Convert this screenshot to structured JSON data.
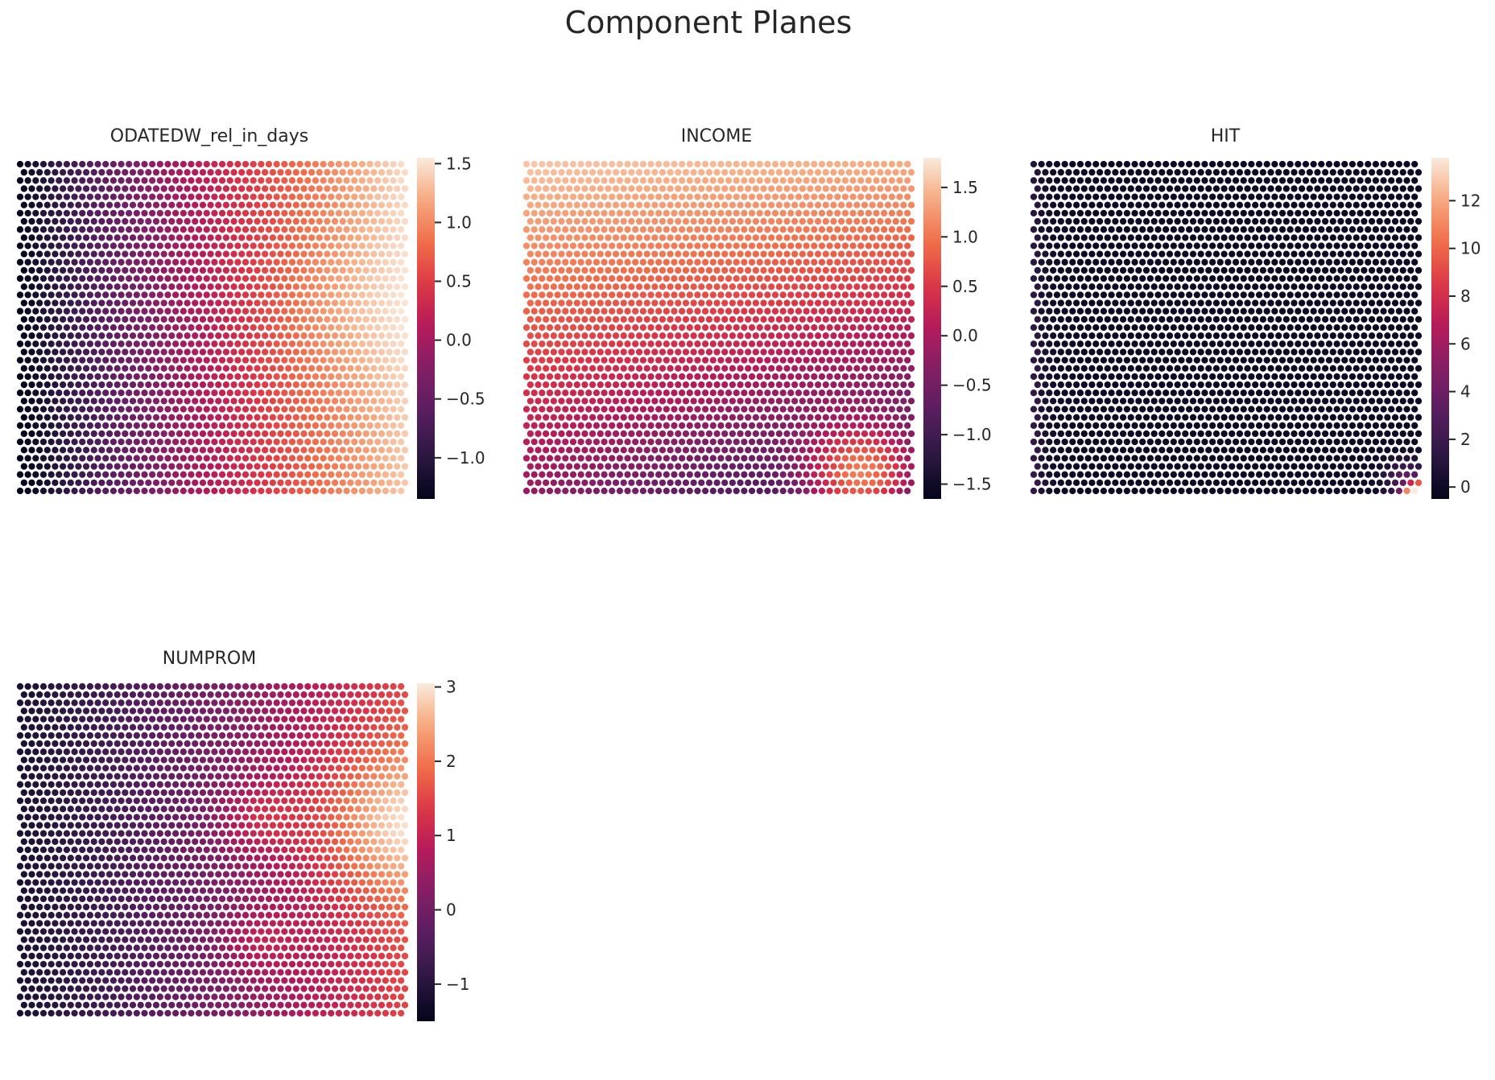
{
  "figure": {
    "title": "Component Planes"
  },
  "chart_data": [
    {
      "type": "heatmap",
      "title": "ODATEDW_rel_in_days",
      "grid": "hexagonal",
      "colormap": "rocket",
      "colorbar": {
        "min": -1.35,
        "max": 1.55,
        "ticks": [
          -1.0,
          -0.5,
          0.0,
          0.5,
          1.0,
          1.5
        ],
        "tick_labels": [
          "−1.0",
          "−0.5",
          "0.0",
          "0.5",
          "1.0",
          "1.5"
        ]
      },
      "pattern": "low (dark) on the left, increasing to high (light) on the right; brightest toward the right-center"
    },
    {
      "type": "heatmap",
      "title": "INCOME",
      "grid": "hexagonal",
      "colormap": "rocket",
      "colorbar": {
        "min": -1.65,
        "max": 1.8,
        "ticks": [
          -1.5,
          -1.0,
          -0.5,
          0.0,
          0.5,
          1.0,
          1.5
        ],
        "tick_labels": [
          "−1.5",
          "−1.0",
          "−0.5",
          "0.0",
          "0.5",
          "1.0",
          "1.5"
        ]
      },
      "pattern": "high (light) along the top, decreasing toward the bottom-right dark region, with a warm spot near the bottom-right"
    },
    {
      "type": "heatmap",
      "title": "HIT",
      "grid": "hexagonal",
      "colormap": "rocket",
      "colorbar": {
        "min": -0.5,
        "max": 13.8,
        "ticks": [
          0,
          2,
          4,
          6,
          8,
          10,
          12
        ],
        "tick_labels": [
          "0",
          "2",
          "4",
          "6",
          "8",
          "10",
          "12"
        ]
      },
      "pattern": "almost uniformly near 0, slightly higher along the left edge, peak at the bottom-right corner"
    },
    {
      "type": "heatmap",
      "title": "NUMPROM",
      "grid": "hexagonal",
      "colormap": "rocket",
      "colorbar": {
        "min": -1.5,
        "max": 3.05,
        "ticks": [
          -1,
          0,
          1,
          2,
          3
        ],
        "tick_labels": [
          "−1",
          "0",
          "1",
          "2",
          "3"
        ]
      },
      "pattern": "low (dark) on the left, increasing to the right with the highest values on the right-middle edge"
    }
  ]
}
